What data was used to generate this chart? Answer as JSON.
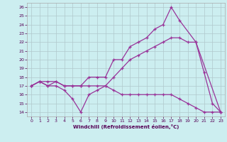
{
  "xlabel": "Windchill (Refroidissement éolien,°C)",
  "xlim": [
    -0.5,
    23.5
  ],
  "ylim": [
    13.5,
    26.5
  ],
  "xticks": [
    0,
    1,
    2,
    3,
    4,
    5,
    6,
    7,
    8,
    9,
    10,
    11,
    12,
    13,
    14,
    15,
    16,
    17,
    18,
    19,
    20,
    21,
    22,
    23
  ],
  "yticks": [
    14,
    15,
    16,
    17,
    18,
    19,
    20,
    21,
    22,
    23,
    24,
    25,
    26
  ],
  "bg_color": "#cceef0",
  "line_color": "#993399",
  "grid_color": "#b0c8cc",
  "lines": [
    {
      "x": [
        0,
        1,
        2,
        3,
        4,
        5,
        6,
        7,
        8,
        9,
        10,
        11,
        12,
        13,
        14,
        15,
        16,
        17,
        18,
        20,
        21,
        22,
        23
      ],
      "y": [
        17,
        17.5,
        17,
        17.5,
        17,
        17,
        17,
        18,
        18,
        18,
        20,
        20,
        21.5,
        22,
        22.5,
        23.5,
        24,
        26,
        24.5,
        22,
        18.5,
        15,
        14
      ]
    },
    {
      "x": [
        0,
        1,
        2,
        3,
        4,
        5,
        6,
        7,
        8,
        9,
        10,
        11,
        12,
        13,
        14,
        15,
        16,
        17,
        18,
        19,
        20,
        23
      ],
      "y": [
        17,
        17.5,
        17.5,
        17.5,
        17,
        17,
        17,
        17,
        17,
        17,
        18,
        19,
        20,
        20.5,
        21,
        21.5,
        22,
        22.5,
        22.5,
        22,
        22,
        14
      ]
    },
    {
      "x": [
        0,
        1,
        2,
        3,
        4,
        5,
        6,
        7,
        8,
        9,
        10,
        11,
        12,
        13,
        14,
        15,
        16,
        17,
        18,
        19,
        20,
        21,
        22,
        23
      ],
      "y": [
        17,
        17.5,
        17,
        17,
        16.5,
        15.5,
        14,
        16,
        16.5,
        17,
        16.5,
        16,
        16,
        16,
        16,
        16,
        16,
        16,
        15.5,
        15,
        14.5,
        14,
        14,
        14
      ]
    }
  ]
}
